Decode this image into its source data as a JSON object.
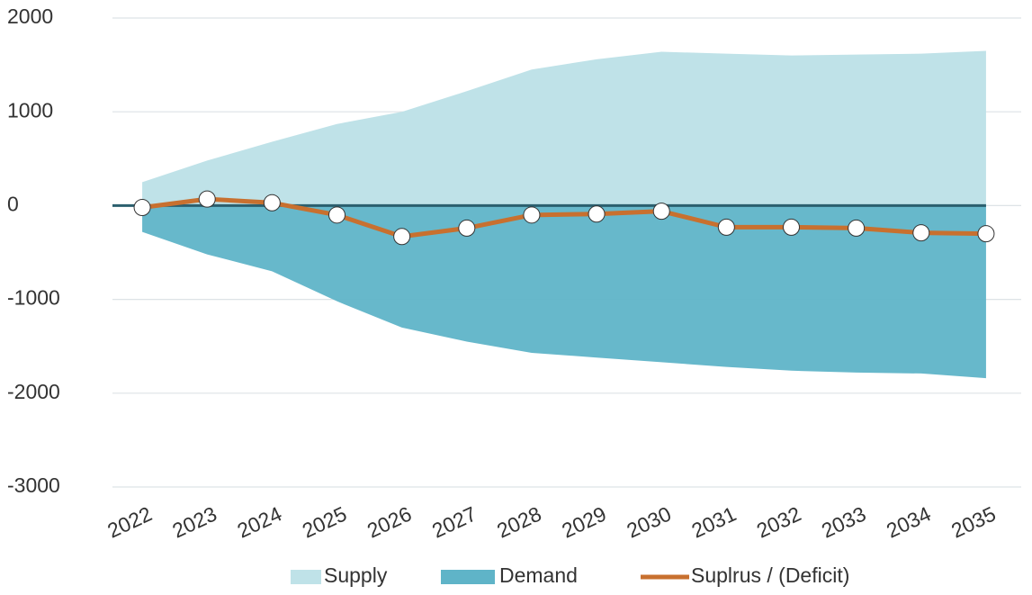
{
  "chart_data": {
    "type": "area-line",
    "categories": [
      "2022",
      "2023",
      "2024",
      "2025",
      "2026",
      "2027",
      "2028",
      "2029",
      "2030",
      "2031",
      "2032",
      "2033",
      "2034",
      "2035"
    ],
    "series": [
      {
        "name": "Supply",
        "color": "#bfe2e8",
        "kind": "area",
        "values": [
          250,
          480,
          680,
          870,
          1000,
          1220,
          1450,
          1560,
          1640,
          1620,
          1600,
          1610,
          1620,
          1650
        ]
      },
      {
        "name": "Demand",
        "color": "#5fb4c8",
        "kind": "area",
        "values": [
          -280,
          -520,
          -700,
          -1020,
          -1300,
          -1450,
          -1570,
          -1620,
          -1670,
          -1720,
          -1760,
          -1780,
          -1790,
          -1840
        ]
      },
      {
        "name": "Suplrus / (Deficit)",
        "color": "#c8702f",
        "kind": "line",
        "values": [
          -20,
          70,
          30,
          -100,
          -330,
          -240,
          -100,
          -90,
          -60,
          -230,
          -230,
          -240,
          -290,
          -300
        ]
      }
    ],
    "ylim": [
      -3000,
      2000
    ],
    "yticks": [
      -3000,
      -2000,
      -1000,
      0,
      1000,
      2000
    ],
    "grid": true
  }
}
